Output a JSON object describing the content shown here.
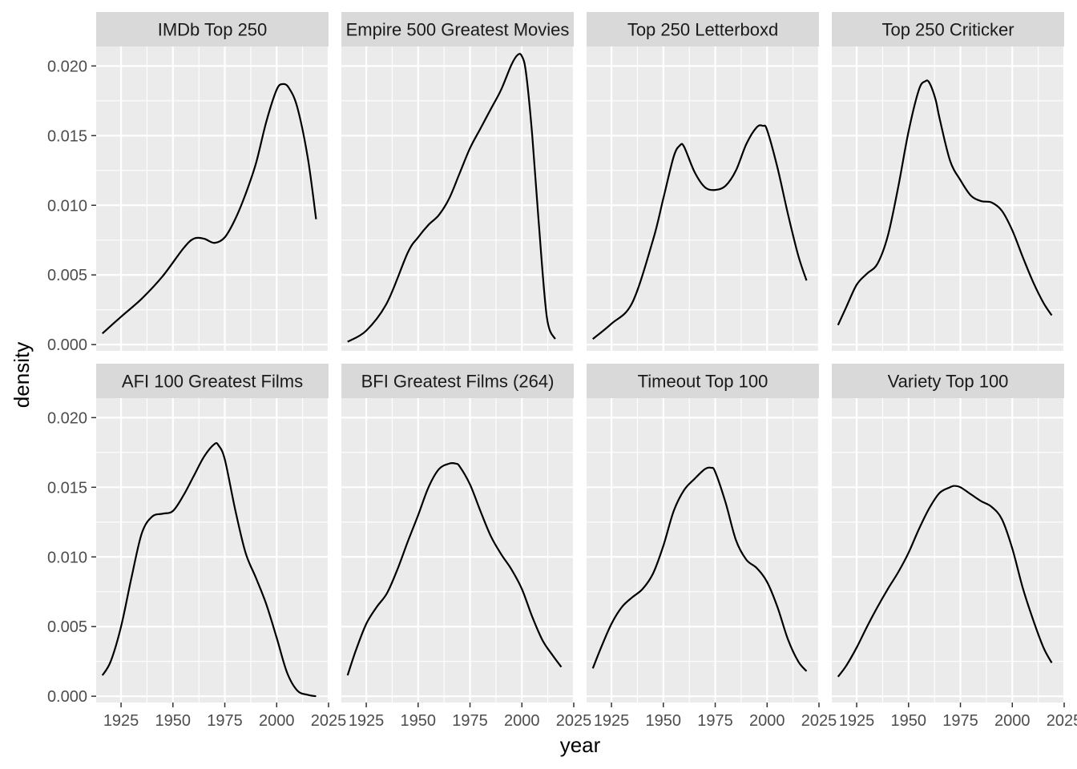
{
  "chart_data": {
    "type": "line",
    "xlabel": "year",
    "ylabel": "density",
    "xlim": [
      1913,
      2025
    ],
    "ylim": [
      -0.00045,
      0.0214
    ],
    "x_ticks": [
      1925,
      1950,
      1975,
      2000,
      2025
    ],
    "x_tick_labels": [
      "1925",
      "1950",
      "1975",
      "2000",
      "2025"
    ],
    "y_ticks": [
      0,
      0.005,
      0.01,
      0.015,
      0.02
    ],
    "y_tick_labels": [
      "0.000",
      "0.005",
      "0.010",
      "0.015",
      "0.020"
    ],
    "grid": true,
    "facets": [
      {
        "title": "IMDb Top 250",
        "x": [
          1916,
          1925,
          1935,
          1945,
          1955,
          1960,
          1965,
          1970,
          1975,
          1980,
          1985,
          1990,
          1995,
          2000,
          2003,
          2006,
          2010,
          2015,
          2019
        ],
        "y": [
          0.0008,
          0.002,
          0.0033,
          0.0049,
          0.0069,
          0.0076,
          0.0076,
          0.0073,
          0.0077,
          0.009,
          0.0108,
          0.013,
          0.016,
          0.0183,
          0.0187,
          0.0184,
          0.017,
          0.0134,
          0.009
        ]
      },
      {
        "title": "Empire 500 Greatest Movies",
        "x": [
          1916,
          1925,
          1935,
          1945,
          1950,
          1955,
          1960,
          1965,
          1970,
          1975,
          1980,
          1985,
          1990,
          1995,
          1998,
          2000,
          2002,
          2005,
          2008,
          2012,
          2016
        ],
        "y": [
          0.0002,
          0.001,
          0.003,
          0.0066,
          0.0077,
          0.0086,
          0.0093,
          0.0105,
          0.0123,
          0.0141,
          0.0155,
          0.0169,
          0.0183,
          0.0201,
          0.0208,
          0.0207,
          0.0195,
          0.015,
          0.009,
          0.002,
          0.0004
        ]
      },
      {
        "title": "Top 250 Letterboxd",
        "x": [
          1916,
          1925,
          1935,
          1945,
          1950,
          1955,
          1958,
          1960,
          1965,
          1970,
          1975,
          1980,
          1985,
          1990,
          1995,
          1998,
          2000,
          2005,
          2010,
          2015,
          2019
        ],
        "y": [
          0.0004,
          0.0015,
          0.003,
          0.0075,
          0.0105,
          0.0135,
          0.0143,
          0.0142,
          0.0124,
          0.0113,
          0.0111,
          0.0114,
          0.0125,
          0.0144,
          0.0156,
          0.0157,
          0.0154,
          0.0127,
          0.0094,
          0.0064,
          0.0046
        ]
      },
      {
        "title": "Top 250 Criticker",
        "x": [
          1916,
          1920,
          1925,
          1930,
          1935,
          1940,
          1945,
          1950,
          1955,
          1958,
          1960,
          1963,
          1965,
          1970,
          1975,
          1980,
          1985,
          1990,
          1995,
          2000,
          2005,
          2010,
          2015,
          2019
        ],
        "y": [
          0.0014,
          0.0027,
          0.0043,
          0.0051,
          0.0058,
          0.0078,
          0.0113,
          0.0153,
          0.0183,
          0.0189,
          0.0188,
          0.0176,
          0.0162,
          0.0132,
          0.0118,
          0.0107,
          0.0103,
          0.0102,
          0.0096,
          0.0082,
          0.0063,
          0.0045,
          0.003,
          0.0021
        ]
      },
      {
        "title": "AFI 100 Greatest Films",
        "x": [
          1916,
          1920,
          1925,
          1930,
          1935,
          1940,
          1945,
          1950,
          1955,
          1960,
          1965,
          1970,
          1972,
          1975,
          1980,
          1985,
          1990,
          1995,
          2000,
          2005,
          2010,
          2015,
          2019
        ],
        "y": [
          0.0015,
          0.0025,
          0.005,
          0.0085,
          0.0117,
          0.0129,
          0.0131,
          0.0133,
          0.0144,
          0.0158,
          0.0172,
          0.0181,
          0.018,
          0.017,
          0.0134,
          0.0103,
          0.0085,
          0.0066,
          0.0042,
          0.0017,
          0.0004,
          0.0001,
          0.0
        ]
      },
      {
        "title": "BFI Greatest Films (264)",
        "x": [
          1916,
          1920,
          1925,
          1930,
          1935,
          1940,
          1945,
          1950,
          1955,
          1960,
          1965,
          1968,
          1970,
          1975,
          1980,
          1985,
          1990,
          1995,
          2000,
          2005,
          2010,
          2015,
          2019
        ],
        "y": [
          0.0015,
          0.0033,
          0.0052,
          0.0064,
          0.0074,
          0.0091,
          0.0111,
          0.013,
          0.015,
          0.0163,
          0.0167,
          0.0167,
          0.0165,
          0.0152,
          0.0133,
          0.0115,
          0.0102,
          0.0091,
          0.0077,
          0.0057,
          0.004,
          0.0029,
          0.0021
        ]
      },
      {
        "title": "Timeout Top 100",
        "x": [
          1916,
          1920,
          1925,
          1930,
          1935,
          1940,
          1945,
          1950,
          1955,
          1960,
          1965,
          1970,
          1973,
          1975,
          1980,
          1985,
          1990,
          1995,
          2000,
          2005,
          2010,
          2015,
          2019
        ],
        "y": [
          0.002,
          0.0035,
          0.0052,
          0.0064,
          0.0071,
          0.0077,
          0.0088,
          0.0108,
          0.0133,
          0.0148,
          0.0156,
          0.0163,
          0.0164,
          0.0161,
          0.0139,
          0.0112,
          0.0098,
          0.0092,
          0.0082,
          0.0064,
          0.0041,
          0.0025,
          0.0018
        ]
      },
      {
        "title": "Variety Top 100",
        "x": [
          1916,
          1920,
          1925,
          1930,
          1935,
          1940,
          1945,
          1950,
          1955,
          1960,
          1965,
          1970,
          1972,
          1975,
          1980,
          1985,
          1990,
          1995,
          2000,
          2005,
          2010,
          2015,
          2019
        ],
        "y": [
          0.0014,
          0.0022,
          0.0035,
          0.005,
          0.0064,
          0.0077,
          0.0089,
          0.0103,
          0.012,
          0.0135,
          0.0146,
          0.015,
          0.0151,
          0.015,
          0.0145,
          0.014,
          0.0136,
          0.0127,
          0.0106,
          0.0078,
          0.0055,
          0.0035,
          0.0024
        ]
      }
    ]
  }
}
